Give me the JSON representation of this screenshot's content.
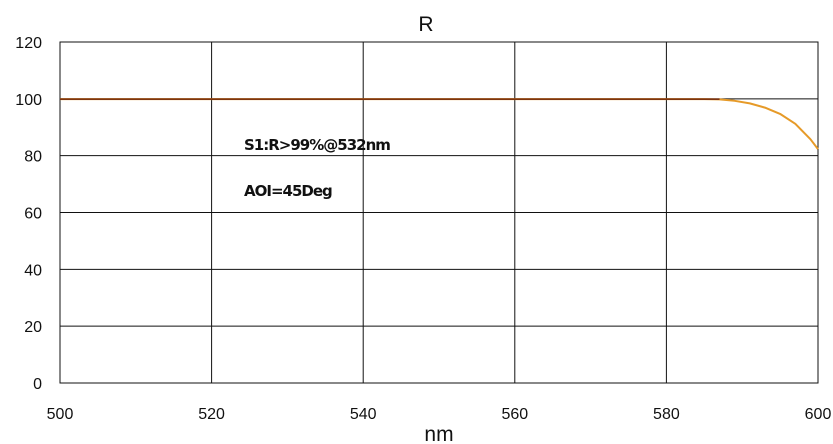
{
  "chart_data": {
    "type": "line",
    "title": "R",
    "xlabel": "nm",
    "ylabel": "",
    "xlim": [
      500,
      600
    ],
    "ylim": [
      0,
      120
    ],
    "xticks": [
      500,
      520,
      540,
      560,
      580,
      600
    ],
    "yticks": [
      0,
      20,
      40,
      60,
      80,
      100,
      120
    ],
    "grid": true,
    "annotations": [
      "S1:R>99%@532nm",
      "AOI=45Deg"
    ],
    "series": [
      {
        "color": "#e69a28",
        "x": [
          500,
          510,
          520,
          530,
          540,
          550,
          560,
          570,
          580,
          585,
          587,
          589,
          591,
          593,
          595,
          597,
          599,
          600
        ],
        "values": [
          99.9,
          99.9,
          99.9,
          99.9,
          99.9,
          99.9,
          99.9,
          99.9,
          99.9,
          99.9,
          99.8,
          99.3,
          98.4,
          96.9,
          94.7,
          91.2,
          85.8,
          82.3
        ]
      },
      {
        "color": "#5a1208",
        "x": [
          500,
          587
        ],
        "values": [
          99.9,
          99.9
        ]
      }
    ]
  }
}
